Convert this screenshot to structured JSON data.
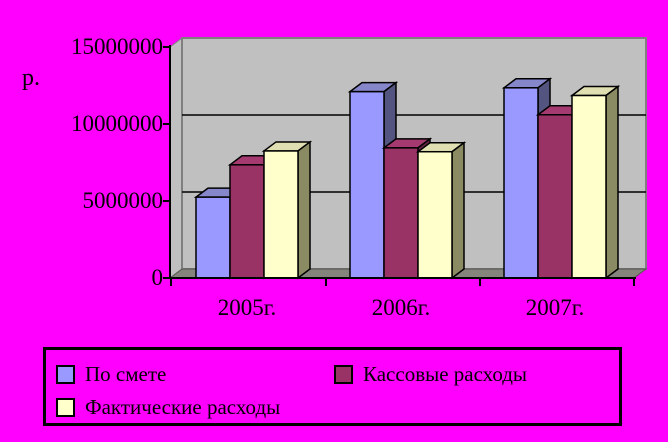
{
  "background_color": "#FF00FF",
  "chart_data": {
    "type": "bar",
    "style": "3d-clustered-column",
    "title": "",
    "xlabel": "",
    "ylabel": "р.",
    "categories": [
      "2005г.",
      "2006г.",
      "2007г."
    ],
    "series": [
      {
        "name": "По смете",
        "values": [
          5250000,
          12100000,
          12350000
        ],
        "color": {
          "front": "#9999FF",
          "top": "#8686CB",
          "side": "#545480"
        }
      },
      {
        "name": "Кассовые расходы",
        "values": [
          7350000,
          8450000,
          10600000
        ],
        "color": {
          "front": "#993366",
          "top": "#A53A70",
          "side": "#6B2349"
        }
      },
      {
        "name": "Фактические расходы",
        "values": [
          8250000,
          8200000,
          11850000
        ],
        "color": {
          "front": "#FFFFCC",
          "top": "#DFDFB2",
          "side": "#8A8A63"
        }
      }
    ],
    "ylim": [
      0,
      15000000
    ],
    "ytick_values": [
      15000000,
      10000000,
      5000000,
      0
    ],
    "ytick_labels": [
      "15000000",
      "10000000",
      "5000000",
      "0"
    ],
    "grid": true,
    "legend_position": "bottom",
    "wall_color": "#C0C0C0",
    "wall_border_color": "#7F7F7F",
    "floor_color": "#84847C",
    "outline_color": "#000000",
    "text_color": "#000000"
  }
}
